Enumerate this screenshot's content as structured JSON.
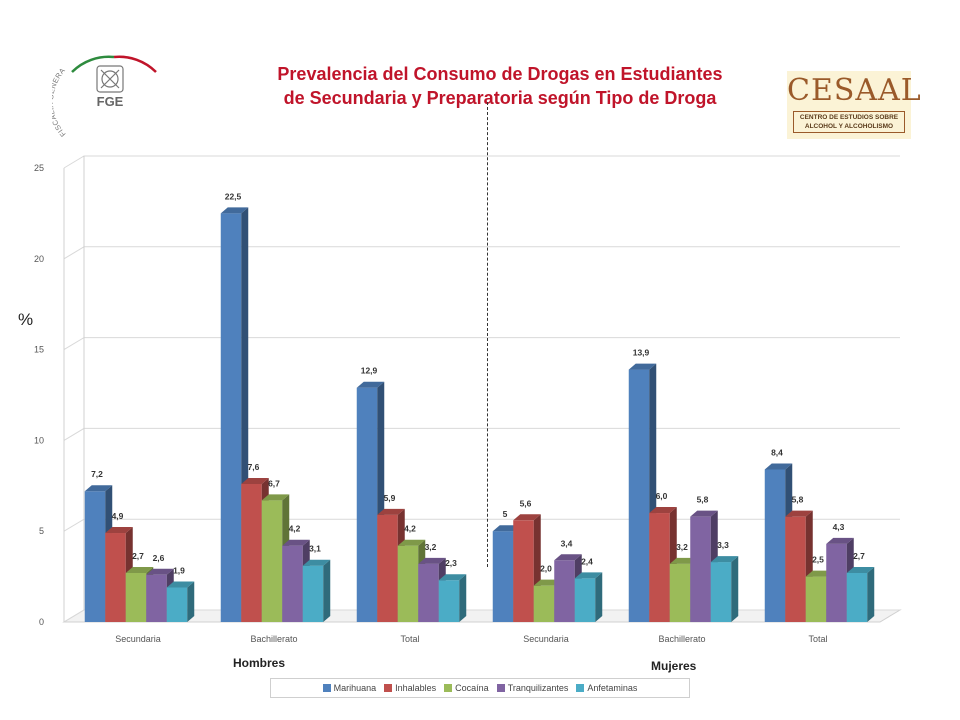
{
  "header": {
    "title_line1": "Prevalencia del Consumo de Drogas en Estudiantes",
    "title_line2": "de Secundaria y Preparatoria según Tipo de Droga",
    "left_logo_acronym": "FGE",
    "left_logo_arc_text": "FISCALÍA GENERAL DEL ESTADO",
    "right_logo_name": "CESAAL",
    "right_logo_sub_line1": "CENTRO DE ESTUDIOS SOBRE",
    "right_logo_sub_line2": "ALCOHOL Y ALCOHOLISMO",
    "logo_red": "#c0142a",
    "logo_green": "#2e8b3e"
  },
  "chart_data": {
    "type": "bar",
    "title": "Prevalencia del Consumo de Drogas en Estudiantes de Secundaria y Preparatoria según Tipo de Droga",
    "ylabel": "%",
    "ylim": [
      0,
      25
    ],
    "yticks": [
      0,
      5,
      10,
      15,
      20,
      25
    ],
    "categories": [
      "Secundaria",
      "Bachillerato",
      "Total",
      "Secundaria",
      "Bachillerato",
      "Total"
    ],
    "groups": [
      {
        "name": "Hombres",
        "categories": [
          "Secundaria",
          "Bachillerato",
          "Total"
        ]
      },
      {
        "name": "Mujeres",
        "categories": [
          "Secundaria",
          "Bachillerato",
          "Total"
        ]
      }
    ],
    "series": [
      {
        "name": "Marihuana",
        "color": "#4f81bd",
        "values": [
          7.2,
          22.5,
          12.9,
          5,
          13.9,
          8.4
        ],
        "labels": [
          "7,2",
          "22,5",
          "12,9",
          "5",
          "13,9",
          "8,4"
        ]
      },
      {
        "name": "Inhalables",
        "color": "#c0504d",
        "values": [
          4.9,
          7.6,
          5.9,
          5.6,
          6.0,
          5.8
        ],
        "labels": [
          "4,9",
          "7,6",
          "5,9",
          "5,6",
          "6,0",
          "5,8"
        ]
      },
      {
        "name": "Cocaína",
        "color": "#9bbb59",
        "values": [
          2.7,
          6.7,
          4.2,
          2.0,
          3.2,
          2.5
        ],
        "labels": [
          "2,7",
          "6,7",
          "4,2",
          "2,0",
          "3,2",
          "2,5"
        ]
      },
      {
        "name": "Tranquilizantes",
        "color": "#8064a2",
        "values": [
          2.6,
          4.2,
          3.2,
          3.4,
          5.8,
          4.3
        ],
        "labels": [
          "2,6",
          "4,2",
          "3,2",
          "3,4",
          "5,8",
          "4,3"
        ]
      },
      {
        "name": "Anfetaminas",
        "color": "#4bacc6",
        "values": [
          1.9,
          3.1,
          2.3,
          2.4,
          3.3,
          2.7
        ],
        "labels": [
          "1,9",
          "3,1",
          "2,3",
          "2,4",
          "3,3",
          "2,7"
        ]
      }
    ],
    "legend_position": "bottom",
    "grid": true
  }
}
